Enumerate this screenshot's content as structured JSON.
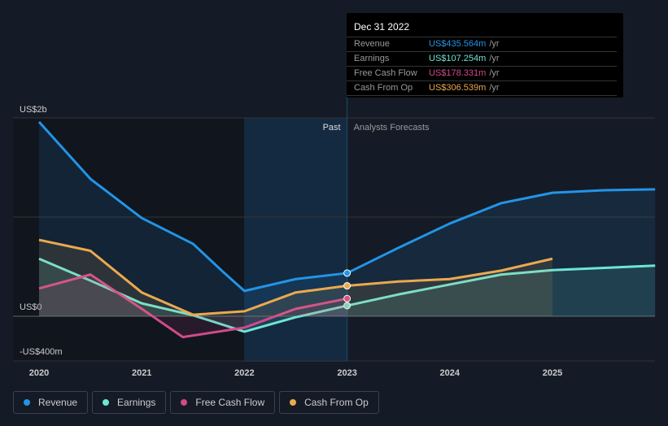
{
  "tooltip": {
    "date": "Dec 31 2022",
    "unit": "/yr",
    "rows": [
      {
        "label": "Revenue",
        "value": "US$435.564m",
        "color": "#2394e6"
      },
      {
        "label": "Earnings",
        "value": "US$107.254m",
        "color": "#6ee5d4"
      },
      {
        "label": "Free Cash Flow",
        "value": "US$178.331m",
        "color": "#d14a8b"
      },
      {
        "label": "Cash From Op",
        "value": "US$306.539m",
        "color": "#eba94f"
      }
    ]
  },
  "chart_data": {
    "type": "line",
    "ylabels": [
      "US$2b",
      "US$0",
      "-US$400m"
    ],
    "ylim": [
      -400,
      2000
    ],
    "xlim": [
      2019.75,
      2026
    ],
    "xticks": [
      "2020",
      "2021",
      "2022",
      "2023",
      "2024",
      "2025"
    ],
    "regions": {
      "past": "Past",
      "forecast": "Analysts Forecasts",
      "divider": 2023
    },
    "series": [
      {
        "name": "Revenue",
        "color": "#2394e6",
        "x": [
          2020,
          2020.5,
          2021,
          2021.5,
          2021.8,
          2022,
          2022.5,
          2023,
          2023.5,
          2024,
          2024.5,
          2025,
          2025.5,
          2026
        ],
        "y": [
          1960,
          1385,
          990,
          730,
          440,
          255,
          375,
          435,
          690,
          935,
          1140,
          1245,
          1270,
          1280
        ]
      },
      {
        "name": "Earnings",
        "color": "#6ee5d4",
        "x": [
          2020,
          2020.5,
          2021,
          2021.5,
          2022,
          2022.5,
          2023,
          2023.5,
          2024,
          2024.5,
          2025,
          2026
        ],
        "y": [
          580,
          360,
          130,
          10,
          -155,
          -10,
          107,
          220,
          320,
          420,
          465,
          510
        ]
      },
      {
        "name": "Free Cash Flow",
        "color": "#d14a8b",
        "x": [
          2020,
          2020.5,
          2021,
          2021.4,
          2022,
          2022.5,
          2023
        ],
        "y": [
          280,
          420,
          75,
          -210,
          -115,
          75,
          178
        ]
      },
      {
        "name": "Cash From Op",
        "color": "#eba94f",
        "x": [
          2020,
          2020.5,
          2021,
          2021.5,
          2022,
          2022.5,
          2023,
          2023.5,
          2024,
          2024.5,
          2025
        ],
        "y": [
          770,
          660,
          240,
          15,
          50,
          240,
          307,
          350,
          375,
          460,
          580
        ]
      }
    ]
  }
}
